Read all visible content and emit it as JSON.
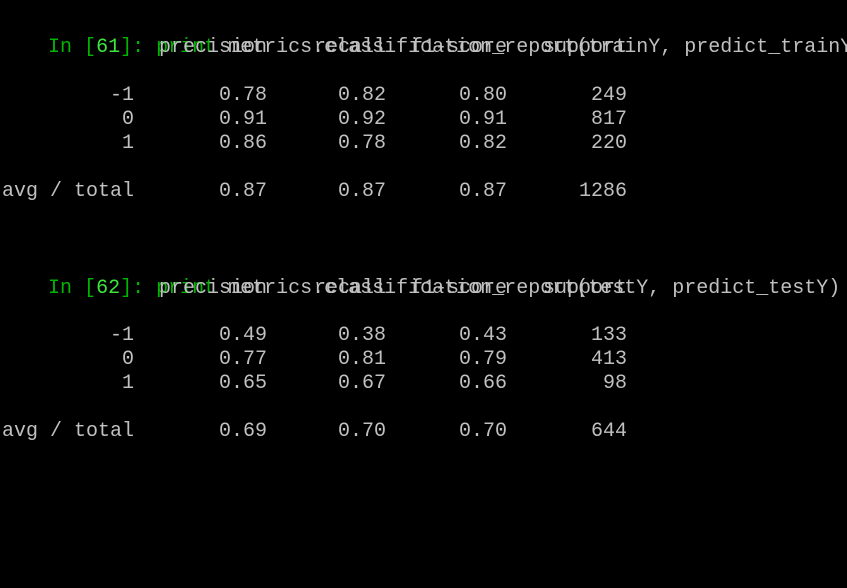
{
  "colors": {
    "background": "#000000",
    "text": "#c0c0c0",
    "prompt": "#00b400",
    "prompt_number": "#3ce63c"
  },
  "cells": [
    {
      "prompt_in": "In",
      "prompt_open": "[",
      "prompt_number": "61",
      "prompt_close": "]:",
      "keyword": "print",
      "code": "metrics.classification_report(trainY, predict_trainY)",
      "headers": {
        "precision": "precision",
        "recall": "recall",
        "f1": "f1-score",
        "support": "support"
      },
      "rows": [
        {
          "label": "-1",
          "precision": "0.78",
          "recall": "0.82",
          "f1": "0.80",
          "support": "249"
        },
        {
          "label": "0",
          "precision": "0.91",
          "recall": "0.92",
          "f1": "0.91",
          "support": "817"
        },
        {
          "label": "1",
          "precision": "0.86",
          "recall": "0.78",
          "f1": "0.82",
          "support": "220"
        }
      ],
      "total": {
        "label": "avg / total",
        "precision": "0.87",
        "recall": "0.87",
        "f1": "0.87",
        "support": "1286"
      }
    },
    {
      "prompt_in": "In",
      "prompt_open": "[",
      "prompt_number": "62",
      "prompt_close": "]:",
      "keyword": "print",
      "code": "metrics.classification_report(testY, predict_testY)",
      "headers": {
        "precision": "precision",
        "recall": "recall",
        "f1": "f1-score",
        "support": "support"
      },
      "rows": [
        {
          "label": "-1",
          "precision": "0.49",
          "recall": "0.38",
          "f1": "0.43",
          "support": "133"
        },
        {
          "label": "0",
          "precision": "0.77",
          "recall": "0.81",
          "f1": "0.79",
          "support": "413"
        },
        {
          "label": "1",
          "precision": "0.65",
          "recall": "0.67",
          "f1": "0.66",
          "support": "98"
        }
      ],
      "total": {
        "label": "avg / total",
        "precision": "0.69",
        "recall": "0.70",
        "f1": "0.70",
        "support": "644"
      }
    }
  ]
}
